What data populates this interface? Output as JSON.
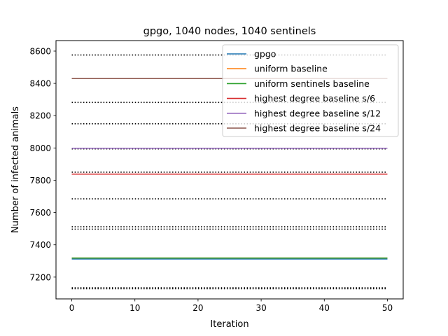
{
  "chart_data": {
    "type": "line",
    "title": "gpgo, 1040 nodes, 1040 sentinels",
    "xlabel": "Iteration",
    "ylabel": "Number of infected animals",
    "xlim": [
      -2.5,
      52.5
    ],
    "ylim": [
      7065,
      8665
    ],
    "xticks": [
      0,
      10,
      20,
      30,
      40,
      50
    ],
    "yticks": [
      7200,
      7400,
      7600,
      7800,
      8000,
      8200,
      8400,
      8600
    ],
    "x_range": [
      0,
      50
    ],
    "grid": false,
    "legend_position": "top-right",
    "series": [
      {
        "name": "gpgo",
        "color": "#1f77b4",
        "y": 7312
      },
      {
        "name": "uniform baseline",
        "color": "#ff7f0e",
        "y": 7318
      },
      {
        "name": "uniform sentinels baseline",
        "color": "#2ca02c",
        "y": 7318
      },
      {
        "name": "highest degree baseline s/6",
        "color": "#d62728",
        "y": 7838
      },
      {
        "name": "highest degree baseline s/12",
        "color": "#9467bd",
        "y": 7998
      },
      {
        "name": "highest degree baseline s/24",
        "color": "#8c564b",
        "y": 8430
      }
    ],
    "reference_lines": {
      "color": "#000000",
      "style": "dotted",
      "y": [
        8576,
        8282,
        8150,
        7994,
        7850,
        7685,
        7512,
        7497,
        7134,
        7128
      ]
    }
  }
}
